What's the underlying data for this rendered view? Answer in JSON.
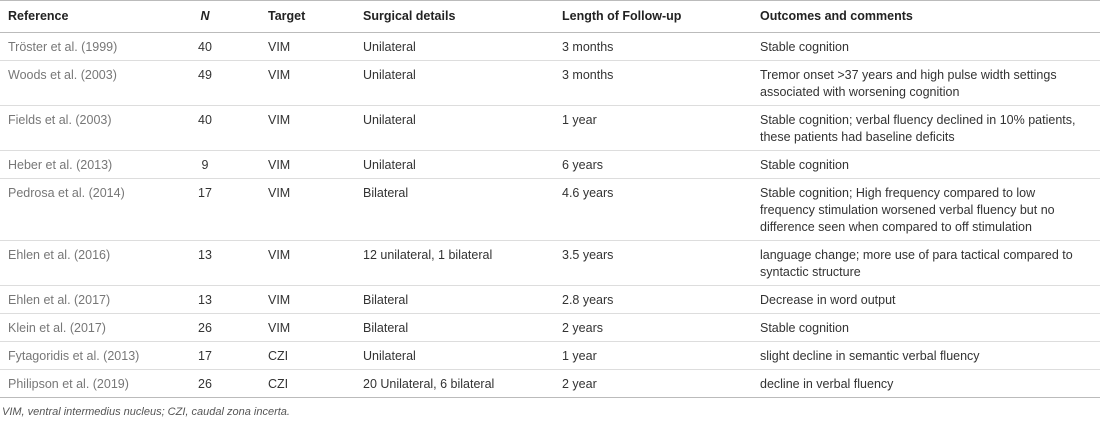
{
  "table": {
    "header": [
      "Reference",
      "N",
      "Target",
      "Surgical details",
      "Length of Follow-up",
      "Outcomes and comments"
    ],
    "rows": [
      [
        "Tröster et al. (1999)",
        "40",
        "VIM",
        "Unilateral",
        "3 months",
        "Stable cognition"
      ],
      [
        "Woods et al. (2003)",
        "49",
        "VIM",
        "Unilateral",
        "3 months",
        "Tremor onset >37 years and high pulse width settings associated with worsening cognition"
      ],
      [
        "Fields et al. (2003)",
        "40",
        "VIM",
        "Unilateral",
        "1 year",
        "Stable cognition; verbal fluency declined in 10% patients, these patients had baseline deficits"
      ],
      [
        "Heber et al. (2013)",
        "9",
        "VIM",
        "Unilateral",
        "6 years",
        "Stable cognition"
      ],
      [
        "Pedrosa et al. (2014)",
        "17",
        "VIM",
        "Bilateral",
        "4.6 years",
        "Stable cognition; High frequency compared to low frequency stimulation worsened verbal fluency but no difference seen when compared to off stimulation"
      ],
      [
        "Ehlen et al. (2016)",
        "13",
        "VIM",
        "12 unilateral, 1 bilateral",
        "3.5 years",
        "language change; more use of para tactical compared to syntactic structure"
      ],
      [
        "Ehlen et al. (2017)",
        "13",
        "VIM",
        "Bilateral",
        "2.8 years",
        "Decrease in word output"
      ],
      [
        "Klein et al. (2017)",
        "26",
        "VIM",
        "Bilateral",
        "2 years",
        "Stable cognition"
      ],
      [
        "Fytagoridis et al. (2013)",
        "17",
        "CZI",
        "Unilateral",
        "1 year",
        "slight decline in semantic verbal fluency"
      ],
      [
        "Philipson et al. (2019)",
        "26",
        "CZI",
        "20 Unilateral, 6 bilateral",
        "2 year",
        "decline in verbal fluency"
      ]
    ]
  },
  "footnote": "VIM, ventral intermedius nucleus; CZI, caudal zona incerta."
}
